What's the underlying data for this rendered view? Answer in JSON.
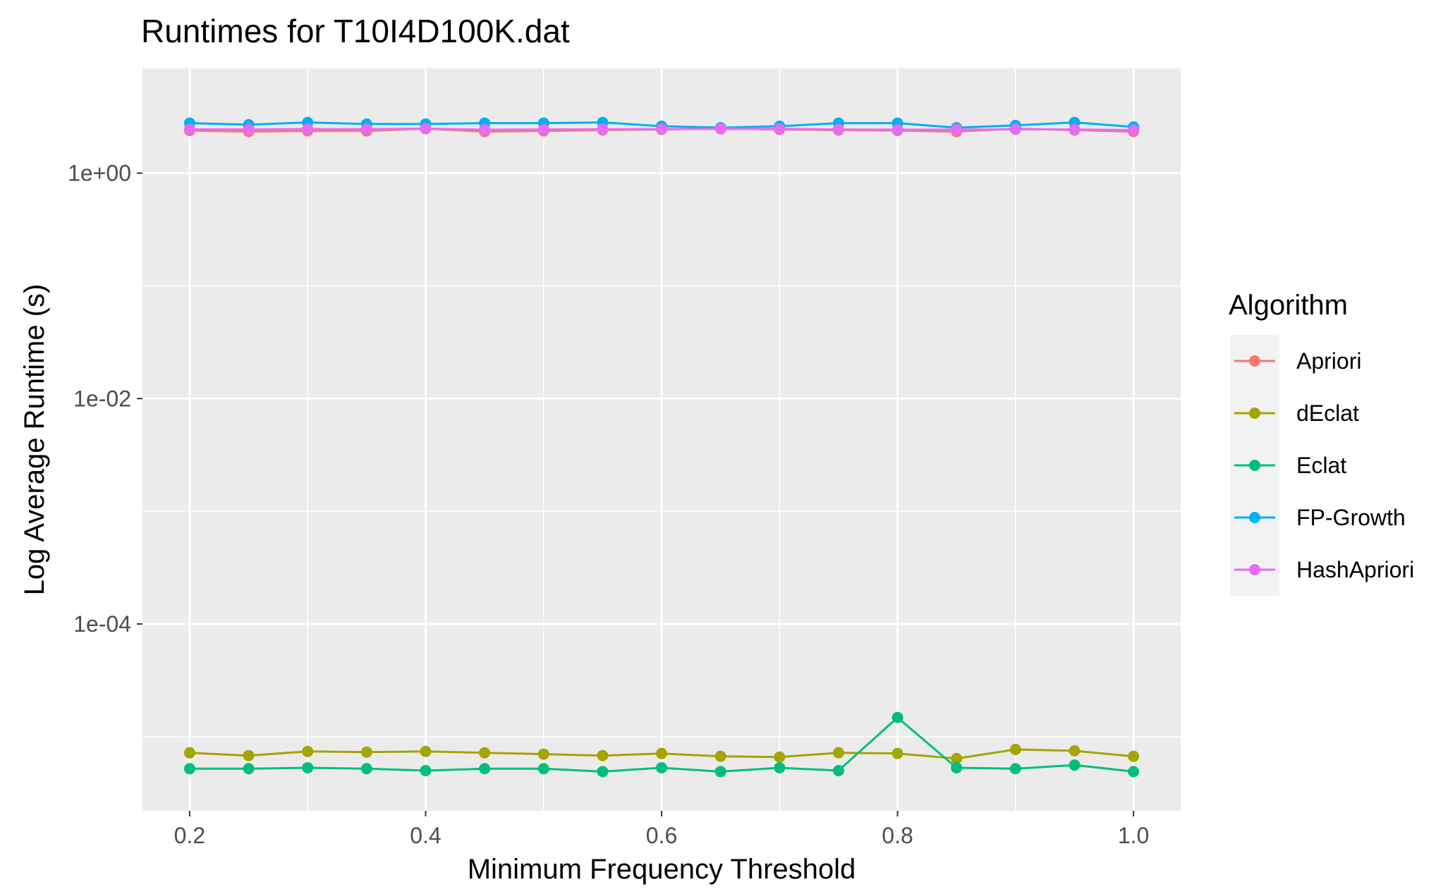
{
  "chart_data": {
    "type": "line",
    "title": "Runtimes for T10I4D100K.dat",
    "xlabel": "Minimum Frequency Threshold",
    "ylabel": "Log Average Runtime (s)",
    "y_scale": "log10",
    "xlim": [
      0.16,
      1.04
    ],
    "ylim": [
      2.2e-06,
      8.5
    ],
    "x_ticks": [
      0.2,
      0.4,
      0.6,
      0.8,
      1.0
    ],
    "x_tick_labels": [
      "0.2",
      "0.4",
      "0.6",
      "0.8",
      "1.0"
    ],
    "y_ticks": [
      0.0001,
      0.01,
      1
    ],
    "y_tick_labels": [
      "1e-04",
      "1e-02",
      "1e+00"
    ],
    "y_minor_ticks": [
      1e-05,
      0.001,
      0.1
    ],
    "grid": true,
    "legend": {
      "title": "Algorithm",
      "position": "right"
    },
    "x": [
      0.2,
      0.25,
      0.3,
      0.35,
      0.4,
      0.45,
      0.5,
      0.55,
      0.6,
      0.65,
      0.7,
      0.75,
      0.8,
      0.85,
      0.9,
      0.95,
      1.0
    ],
    "series": [
      {
        "name": "Apriori",
        "color": "#F8766D",
        "values": [
          2.39,
          2.34,
          2.37,
          2.37,
          2.48,
          2.34,
          2.37,
          2.41,
          2.44,
          2.48,
          2.44,
          2.41,
          2.39,
          2.34,
          2.48,
          2.41,
          2.34
        ]
      },
      {
        "name": "dEclat",
        "color": "#A3A500",
        "values": [
          7.2e-06,
          6.8e-06,
          7.4e-06,
          7.3e-06,
          7.4e-06,
          7.2e-06,
          7e-06,
          6.8e-06,
          7.1e-06,
          6.7e-06,
          6.6e-06,
          7.2e-06,
          7.1e-06,
          6.4e-06,
          7.7e-06,
          7.5e-06,
          6.7e-06
        ]
      },
      {
        "name": "Eclat",
        "color": "#00BF7D",
        "values": [
          5.2e-06,
          5.2e-06,
          5.3e-06,
          5.2e-06,
          5e-06,
          5.2e-06,
          5.2e-06,
          4.9e-06,
          5.3e-06,
          4.9e-06,
          5.3e-06,
          5e-06,
          1.48e-05,
          5.3e-06,
          5.2e-06,
          5.6e-06,
          4.9e-06
        ]
      },
      {
        "name": "FP-Growth",
        "color": "#00B0F6",
        "values": [
          2.78,
          2.69,
          2.82,
          2.73,
          2.73,
          2.78,
          2.78,
          2.82,
          2.61,
          2.53,
          2.61,
          2.78,
          2.78,
          2.53,
          2.65,
          2.82,
          2.57
        ]
      },
      {
        "name": "HashApriori",
        "color": "#E76BF3",
        "values": [
          2.45,
          2.44,
          2.46,
          2.46,
          2.48,
          2.43,
          2.44,
          2.45,
          2.46,
          2.47,
          2.47,
          2.44,
          2.43,
          2.43,
          2.45,
          2.44,
          2.41
        ]
      }
    ]
  }
}
